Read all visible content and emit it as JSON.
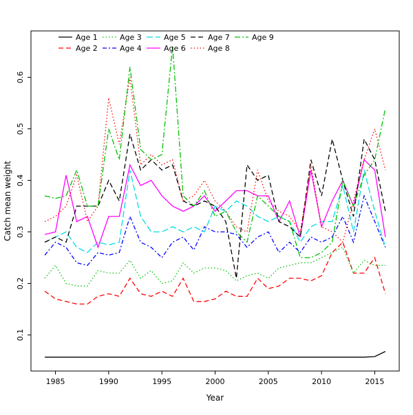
{
  "chart_data": {
    "type": "line",
    "title": "",
    "xlabel": "Year",
    "ylabel": "Catch mean weight",
    "xlim": [
      1982.7,
      2017.3
    ],
    "ylim": [
      0.03,
      0.69
    ],
    "xticks": [
      1985,
      1990,
      1995,
      2000,
      2005,
      2010,
      2015
    ],
    "yticks": [
      0.1,
      0.2,
      0.3,
      0.4,
      0.5,
      0.6
    ],
    "grid": false,
    "legend_position": "top-left-inside",
    "x": [
      1984,
      1985,
      1986,
      1987,
      1988,
      1989,
      1990,
      1991,
      1992,
      1993,
      1994,
      1995,
      1996,
      1997,
      1998,
      1999,
      2000,
      2001,
      2002,
      2003,
      2004,
      2005,
      2006,
      2007,
      2008,
      2009,
      2010,
      2011,
      2012,
      2013,
      2014,
      2015,
      2016
    ],
    "series": [
      {
        "name": "Age 1",
        "color": "#000000",
        "dash": "",
        "values": [
          0.057,
          0.057,
          0.057,
          0.057,
          0.057,
          0.057,
          0.057,
          0.057,
          0.057,
          0.057,
          0.057,
          0.057,
          0.057,
          0.057,
          0.057,
          0.057,
          0.057,
          0.057,
          0.057,
          0.057,
          0.057,
          0.057,
          0.057,
          0.057,
          0.057,
          0.057,
          0.057,
          0.057,
          0.057,
          0.057,
          0.057,
          0.058,
          0.068
        ]
      },
      {
        "name": "Age 2",
        "color": "#FF0000",
        "dash": "7,4",
        "values": [
          0.185,
          0.17,
          0.165,
          0.16,
          0.16,
          0.175,
          0.18,
          0.175,
          0.21,
          0.18,
          0.175,
          0.185,
          0.175,
          0.21,
          0.165,
          0.165,
          0.17,
          0.185,
          0.175,
          0.175,
          0.21,
          0.19,
          0.195,
          0.21,
          0.21,
          0.205,
          0.215,
          0.26,
          0.28,
          0.22,
          0.22,
          0.25,
          0.18
        ]
      },
      {
        "name": "Age 3",
        "color": "#00C000",
        "dash": "1.5,3",
        "values": [
          0.21,
          0.235,
          0.2,
          0.195,
          0.195,
          0.225,
          0.22,
          0.22,
          0.245,
          0.21,
          0.225,
          0.2,
          0.205,
          0.24,
          0.22,
          0.23,
          0.23,
          0.225,
          0.205,
          0.215,
          0.22,
          0.21,
          0.23,
          0.235,
          0.24,
          0.24,
          0.25,
          0.26,
          0.27,
          0.22,
          0.245,
          0.235,
          0.235
        ]
      },
      {
        "name": "Age 4",
        "color": "#0000FF",
        "dash": "6,3,2,3",
        "values": [
          0.255,
          0.28,
          0.27,
          0.24,
          0.235,
          0.26,
          0.255,
          0.26,
          0.33,
          0.28,
          0.27,
          0.25,
          0.28,
          0.29,
          0.265,
          0.31,
          0.3,
          0.3,
          0.295,
          0.27,
          0.29,
          0.3,
          0.26,
          0.28,
          0.26,
          0.29,
          0.28,
          0.29,
          0.33,
          0.28,
          0.37,
          0.32,
          0.27
        ]
      },
      {
        "name": "Age 5",
        "color": "#00DDE0",
        "dash": "9,4",
        "values": [
          0.28,
          0.29,
          0.3,
          0.27,
          0.26,
          0.28,
          0.275,
          0.28,
          0.42,
          0.33,
          0.3,
          0.3,
          0.31,
          0.3,
          0.31,
          0.3,
          0.35,
          0.34,
          0.36,
          0.35,
          0.33,
          0.32,
          0.33,
          0.32,
          0.28,
          0.31,
          0.32,
          0.32,
          0.39,
          0.3,
          0.42,
          0.34,
          0.27
        ]
      },
      {
        "name": "Age 6",
        "color": "#FF00FF",
        "dash": "",
        "values": [
          0.295,
          0.3,
          0.41,
          0.32,
          0.33,
          0.27,
          0.33,
          0.33,
          0.43,
          0.39,
          0.4,
          0.37,
          0.35,
          0.34,
          0.35,
          0.37,
          0.34,
          0.36,
          0.38,
          0.38,
          0.37,
          0.37,
          0.32,
          0.36,
          0.29,
          0.42,
          0.31,
          0.36,
          0.4,
          0.35,
          0.44,
          0.42,
          0.29
        ]
      },
      {
        "name": "Age 7",
        "color": "#000000",
        "dash": "7,4",
        "values": [
          0.28,
          0.29,
          0.28,
          0.35,
          0.35,
          0.35,
          0.4,
          0.36,
          0.49,
          0.42,
          0.44,
          0.42,
          0.43,
          0.36,
          0.35,
          0.36,
          0.35,
          0.32,
          0.21,
          0.43,
          0.4,
          0.41,
          0.32,
          0.31,
          0.29,
          0.44,
          0.37,
          0.48,
          0.4,
          0.33,
          0.48,
          0.44,
          0.34
        ]
      },
      {
        "name": "Age 8",
        "color": "#FF0000",
        "dash": "1.5,3",
        "values": [
          0.32,
          0.33,
          0.35,
          0.41,
          0.32,
          0.35,
          0.56,
          0.47,
          0.6,
          0.43,
          0.45,
          0.43,
          0.44,
          0.36,
          0.37,
          0.4,
          0.36,
          0.34,
          0.31,
          0.3,
          0.42,
          0.36,
          0.34,
          0.33,
          0.3,
          0.43,
          0.31,
          0.3,
          0.28,
          0.36,
          0.44,
          0.5,
          0.42
        ]
      },
      {
        "name": "Age 9",
        "color": "#00C000",
        "dash": "8,3,2,3",
        "values": [
          0.37,
          0.365,
          0.37,
          0.42,
          0.35,
          0.35,
          0.5,
          0.44,
          0.62,
          0.46,
          0.44,
          0.45,
          0.66,
          0.37,
          0.35,
          0.38,
          0.33,
          0.34,
          0.3,
          0.28,
          0.37,
          0.35,
          0.33,
          0.32,
          0.25,
          0.25,
          0.26,
          0.28,
          0.4,
          0.35,
          0.41,
          0.44,
          0.54
        ]
      }
    ]
  },
  "frame": {
    "background": "#ffffff",
    "box_color": "#000000"
  }
}
